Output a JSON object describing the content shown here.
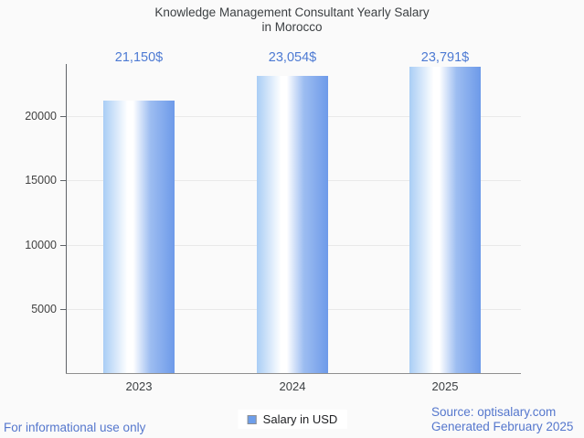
{
  "title": {
    "line1": "Knowledge Management Consultant Yearly Salary",
    "line2": "in Morocco"
  },
  "chart_data": {
    "type": "bar",
    "title": "Knowledge Management Consultant Yearly Salary in Morocco",
    "categories": [
      "2023",
      "2024",
      "2025"
    ],
    "series": [
      {
        "name": "Salary in USD",
        "values": [
          21150,
          23054,
          23791
        ]
      }
    ],
    "value_labels": [
      "21,150$",
      "23,054$",
      "23,791$"
    ],
    "xlabel": "",
    "ylabel": "",
    "ylim": [
      0,
      24000
    ],
    "yticks": [
      5000,
      10000,
      15000,
      20000
    ],
    "ytick_labels": [
      "5000",
      "10000",
      "15000",
      "20000"
    ],
    "grid": true,
    "legend_position": "bottom"
  },
  "legend": {
    "label": "Salary in USD"
  },
  "footer": {
    "left": "For informational use only",
    "source": "Source: optisalary.com",
    "generated": "Generated February 2025"
  },
  "colors": {
    "background": "#fafafa",
    "value_label": "#4d7ad3",
    "footer_text": "#5577cd",
    "bar_gradient_left": "#a9cdf5",
    "bar_gradient_mid": "#ffffff",
    "bar_gradient_right": "#6d9ae9",
    "axis_line": "#5f6368",
    "baseline": "#8f8f8f",
    "gridline": "#e9e9e9",
    "text_dark": "#3c4043",
    "legend_marker": "#6d9eeb"
  }
}
